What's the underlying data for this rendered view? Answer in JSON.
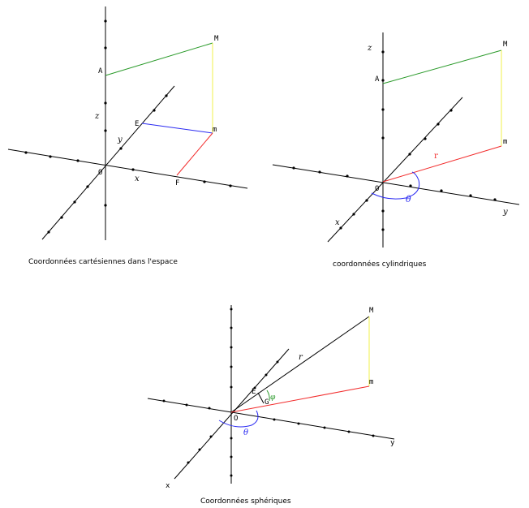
{
  "panels": {
    "cartesian": {
      "caption": "Coordonnées cartésiennes dans l'espace",
      "labels": {
        "M": "M",
        "A": "A",
        "z": "z",
        "E": "E",
        "m": "m",
        "y": "y",
        "O": "O",
        "x": "x",
        "F": "F"
      }
    },
    "cylindrical": {
      "caption": "coordonnées cylindriques",
      "labels": {
        "z": "z",
        "M": "M",
        "A": "A",
        "m": "m",
        "r": "r",
        "O": "O",
        "theta": "θ",
        "x": "x",
        "y": "y"
      }
    },
    "spherical": {
      "caption": "Coordonnées sphériques",
      "labels": {
        "M": "M",
        "r": "r",
        "m": "m",
        "E": "E",
        "G": "G",
        "phi": "φ",
        "O": "O",
        "theta": "θ",
        "y": "y",
        "x": "x"
      }
    }
  },
  "colors": {
    "axis": "#000000",
    "green": "#2a9a2a",
    "yellow": "#f2f24a",
    "blue": "#2a2af2",
    "red": "#f22a2a"
  }
}
